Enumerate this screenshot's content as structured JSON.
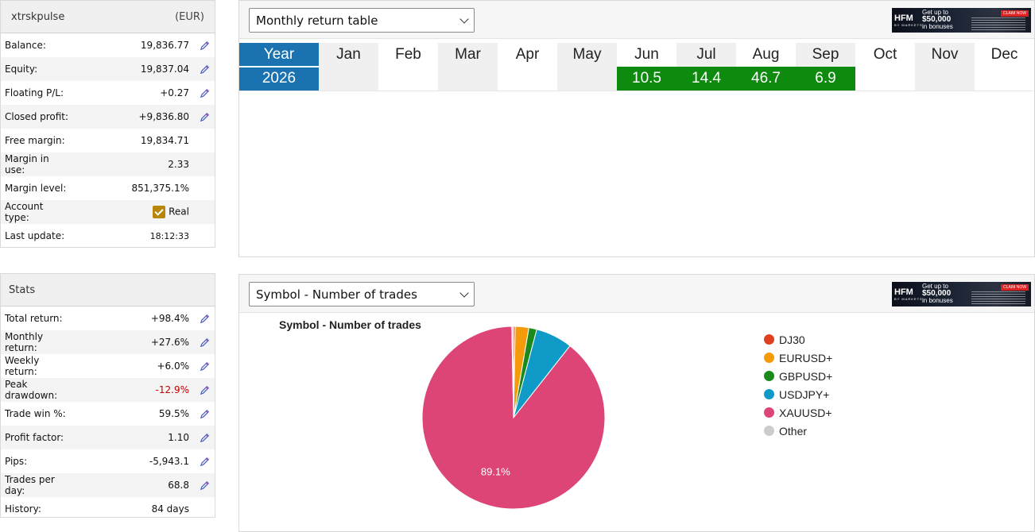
{
  "account": {
    "name": "xtrskpulse",
    "currency": "(EUR)",
    "rows": [
      {
        "label": "Balance:",
        "value": "19,836.77",
        "has_action": true
      },
      {
        "label": "Equity:",
        "value": "19,837.04",
        "has_action": true
      },
      {
        "label": "Floating P/L:",
        "value": "+0.27",
        "has_action": true
      },
      {
        "label": "Closed profit:",
        "value": "+9,836.80",
        "has_action": true
      },
      {
        "label": "Free margin:",
        "value": "19,834.71",
        "has_action": false
      },
      {
        "label": "Margin in use:",
        "value": "2.33",
        "has_action": false
      },
      {
        "label": "Margin level:",
        "value": "851,375.1%",
        "has_action": false
      },
      {
        "label": "Account type:",
        "value": "Real",
        "has_action": false
      },
      {
        "label": "Last update:",
        "value": "18:12:33",
        "has_action": false
      }
    ]
  },
  "stats": {
    "title": "Stats",
    "rows": [
      {
        "label": "Total return:",
        "value": "+98.4%",
        "has_action": true
      },
      {
        "label": "Monthly return:",
        "value": "+27.6%",
        "has_action": true
      },
      {
        "label": "Weekly return:",
        "value": "+6.0%",
        "has_action": true
      },
      {
        "label": "Peak drawdown:",
        "value": "-12.9%",
        "has_action": true,
        "negative": true
      },
      {
        "label": "Trade win %:",
        "value": "59.5%",
        "has_action": true
      },
      {
        "label": "Profit factor:",
        "value": "1.10",
        "has_action": true
      },
      {
        "label": "Pips:",
        "value": "-5,943.1",
        "has_action": true
      },
      {
        "label": "Trades per day:",
        "value": "68.8",
        "has_action": true
      },
      {
        "label": "History:",
        "value": "84 days",
        "has_action": false
      }
    ]
  },
  "monthly_panel": {
    "select_value": "Monthly return table",
    "header_year": "Year",
    "months": [
      "Jan",
      "Feb",
      "Mar",
      "Apr",
      "May",
      "Jun",
      "Jul",
      "Aug",
      "Sep",
      "Oct",
      "Nov",
      "Dec"
    ],
    "year": "2026",
    "values": [
      "",
      "",
      "",
      "",
      "",
      "10.5",
      "14.4",
      "46.7",
      "6.9",
      "",
      "",
      ""
    ]
  },
  "pie_panel": {
    "select_value": "Symbol - Number of trades"
  },
  "ad": {
    "logo": "HFM",
    "logo_sub": "BY MARKETS",
    "line1": "Get up to",
    "line2": "$50,000",
    "line3": "in bonuses",
    "cta": "CLAIM NOW"
  },
  "chart_data": {
    "type": "pie",
    "title": "Symbol - Number of trades",
    "labels": [
      "DJ30",
      "EURUSD+",
      "GBPUSD+",
      "USDJPY+",
      "XAUUSD+",
      "Other"
    ],
    "colors": [
      "#e0401f",
      "#f59a0a",
      "#1a8a1a",
      "#0f9ac7",
      "#dc4575",
      "#cccccc"
    ],
    "values": [
      0.3,
      2.4,
      1.4,
      6.5,
      89.1,
      0.3
    ],
    "data_labels": [
      "",
      "",
      "",
      "",
      "89.1%",
      ""
    ]
  }
}
